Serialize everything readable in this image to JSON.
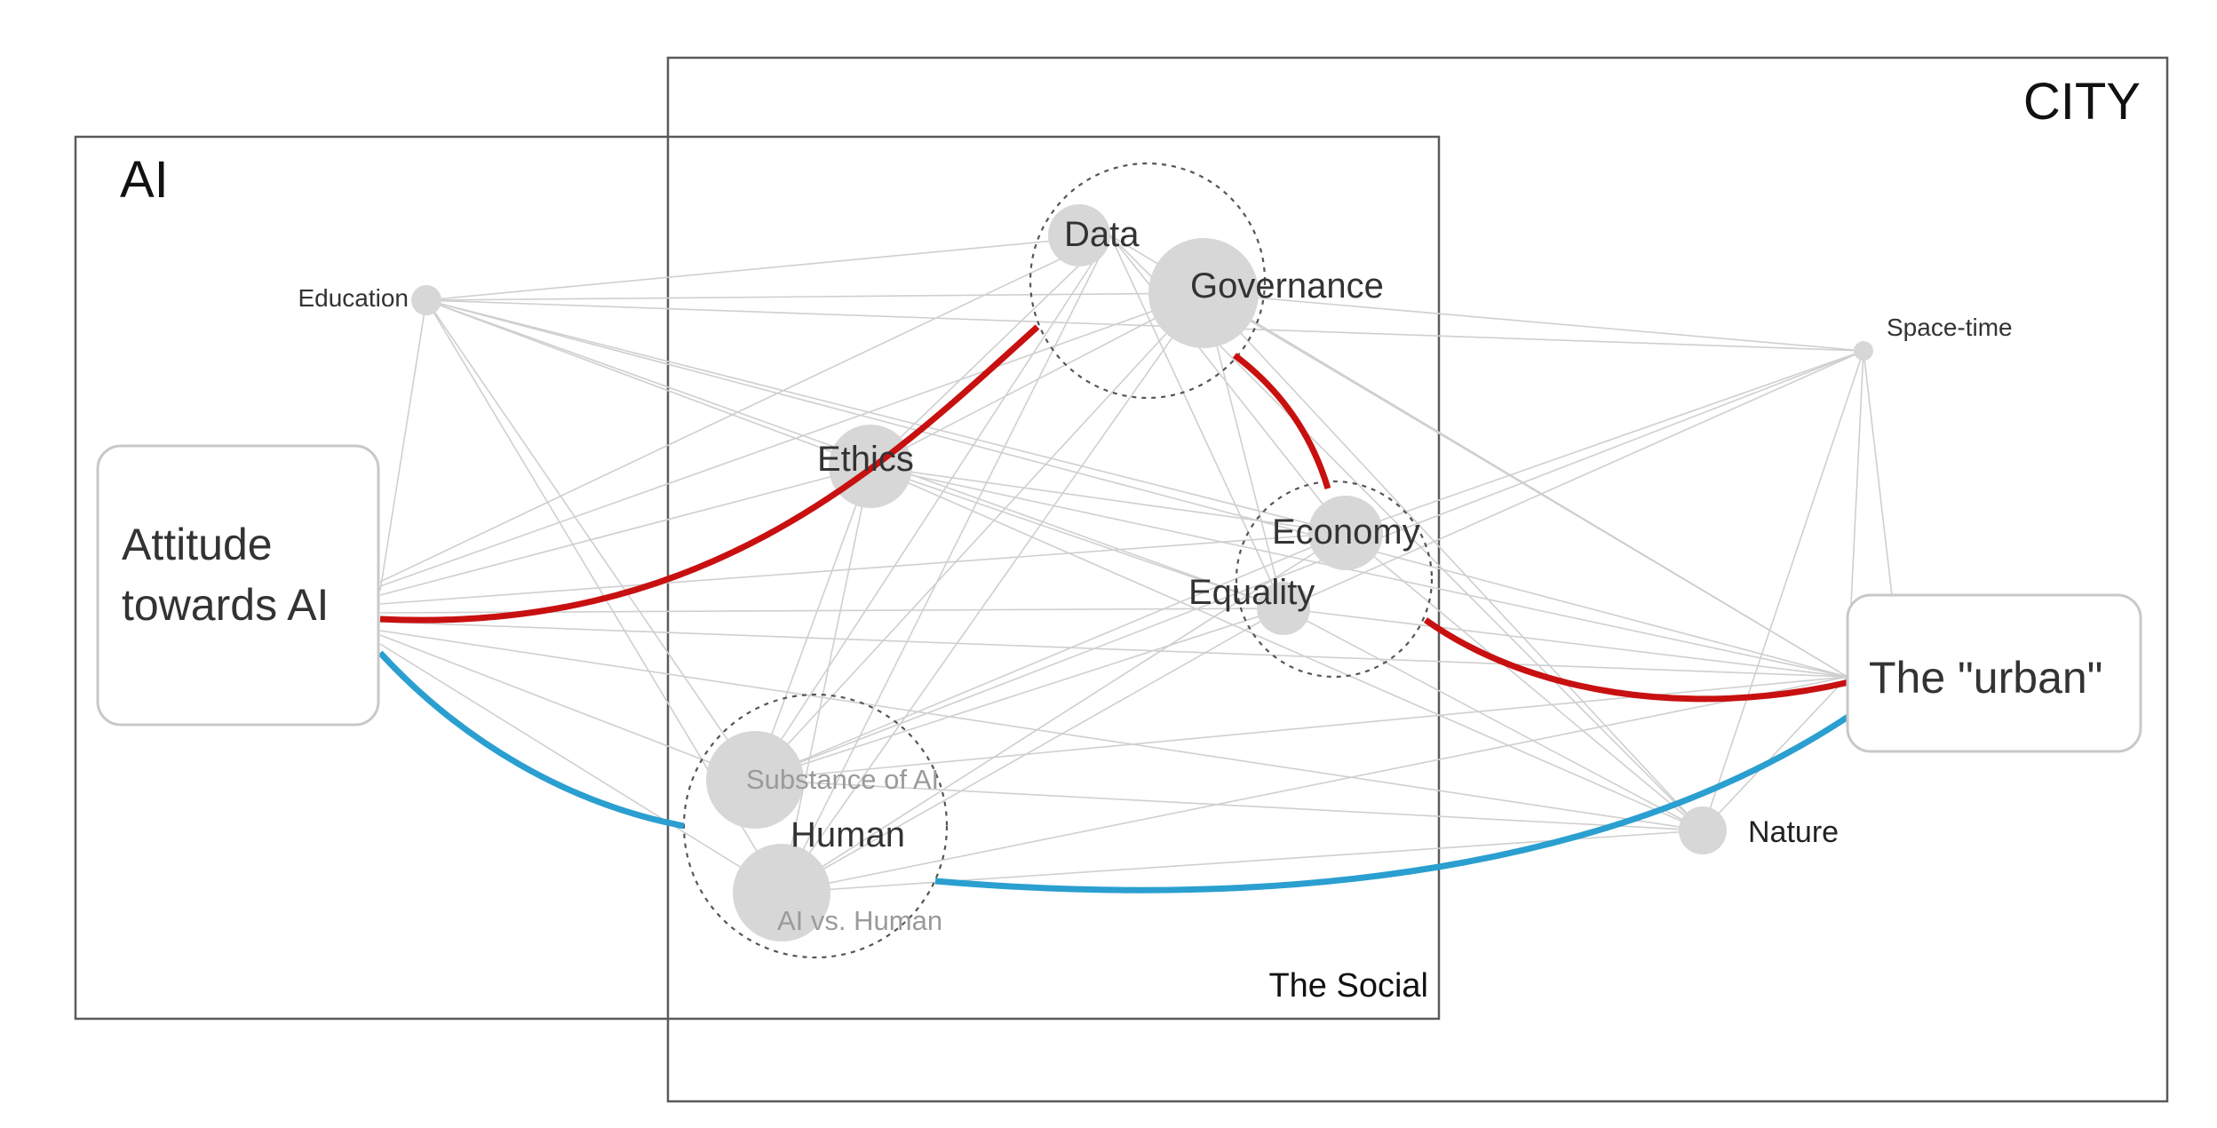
{
  "regions": {
    "ai": "AI",
    "city": "CITY",
    "social": "The Social"
  },
  "nodes": {
    "education": "Education",
    "data": "Data",
    "governance": "Governance",
    "space_time": "Space-time",
    "ethics": "Ethics",
    "economy": "Economy",
    "equality": "Equality",
    "substance_of_ai": "Substance of AI",
    "human": "Human",
    "ai_vs_human": "AI vs. Human",
    "nature": "Nature"
  },
  "boxes": {
    "attitude_line1": "Attitude",
    "attitude_line2": "towards AI",
    "urban": "The \"urban\""
  },
  "colors": {
    "highlight_red": "#c81010",
    "highlight_blue": "#2a9fd0",
    "node_fill": "#d7d7d7",
    "edge": "#cfcfcf"
  }
}
